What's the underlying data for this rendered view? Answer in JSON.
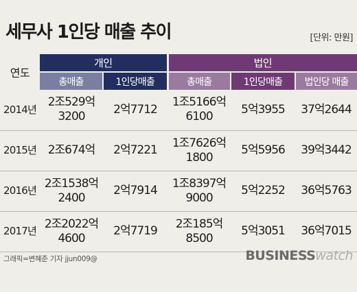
{
  "title": "세무사 1인당 매출 추이",
  "unit": "[단위: 만원]",
  "credit": "그래픽=변혜준 기자 jjun009@",
  "logo": {
    "bold": "BUSINESS",
    "light": "watch"
  },
  "chart_data": {
    "type": "table",
    "group_headers": [
      "개인",
      "법인"
    ],
    "year_header": "연도",
    "columns": [
      "총매출",
      "1인당매출",
      "총매출",
      "1인당매출",
      "법인당 매출"
    ],
    "rows": [
      {
        "year": "2014년",
        "cells": [
          [
            "2조529억",
            "3200"
          ],
          [
            "2억7712"
          ],
          [
            "1조5166억",
            "6100"
          ],
          [
            "5억3955"
          ],
          [
            "37억2644"
          ]
        ]
      },
      {
        "year": "2015년",
        "cells": [
          [
            "2조674억"
          ],
          [
            "2억7221"
          ],
          [
            "1조7626억",
            "1800"
          ],
          [
            "5억5956"
          ],
          [
            "39억3442"
          ]
        ]
      },
      {
        "year": "2016년",
        "cells": [
          [
            "2조1538억",
            "2400"
          ],
          [
            "2억7914"
          ],
          [
            "1조8397억",
            "9000"
          ],
          [
            "5억2252"
          ],
          [
            "36억5763"
          ]
        ]
      },
      {
        "year": "2017년",
        "cells": [
          [
            "2조2022억",
            "4600"
          ],
          [
            "2억7719"
          ],
          [
            "2조185억",
            "8500"
          ],
          [
            "5억3051"
          ],
          [
            "36억7015"
          ]
        ]
      }
    ]
  }
}
